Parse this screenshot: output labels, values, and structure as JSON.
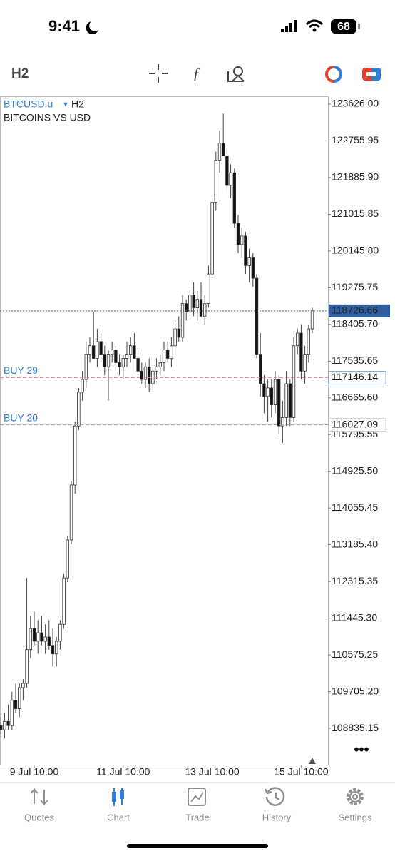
{
  "status_bar": {
    "time": "9:41",
    "battery": "68"
  },
  "toolbar": {
    "period": "H2"
  },
  "chart_header": {
    "symbol": "BTCUSD.u",
    "period": "H2",
    "description": "BITCOINS VS USD"
  },
  "tabs": [
    "Quotes",
    "Chart",
    "Trade",
    "History",
    "Settings"
  ],
  "chart_data": {
    "type": "candlestick",
    "categories": [
      null,
      null,
      null,
      null,
      null,
      null,
      null,
      null,
      null,
      "9 Jul 10:00",
      null,
      null,
      null,
      null,
      null,
      null,
      null,
      null,
      null,
      null,
      null,
      null,
      null,
      null,
      null,
      null,
      null,
      null,
      null,
      null,
      null,
      null,
      null,
      "11 Jul 10:00",
      null,
      null,
      null,
      null,
      null,
      null,
      null,
      null,
      null,
      null,
      null,
      null,
      null,
      null,
      null,
      null,
      null,
      null,
      null,
      null,
      null,
      null,
      null,
      "13 Jul 10:00",
      null,
      null,
      null,
      null,
      null,
      null,
      null,
      null,
      null,
      null,
      null,
      null,
      null,
      null,
      null,
      null,
      null,
      null,
      null,
      null,
      null,
      null,
      null,
      "15 Jul 10:00",
      null,
      null,
      null
    ],
    "open": [
      108900,
      108800,
      109000,
      108900,
      109500,
      109300,
      109800,
      109900,
      110700,
      111200,
      110900,
      111100,
      110900,
      111000,
      110800,
      110600,
      110900,
      111300,
      112400,
      113300,
      114600,
      116000,
      116800,
      117100,
      117700,
      117900,
      117600,
      118000,
      117700,
      117400,
      117700,
      117800,
      117500,
      117400,
      117600,
      117700,
      117900,
      117600,
      117300,
      117100,
      117400,
      117000,
      117300,
      117400,
      117500,
      117800,
      117600,
      117900,
      118300,
      118100,
      118900,
      118700,
      119100,
      118800,
      119000,
      118600,
      118900,
      119600,
      121300,
      122300,
      122700,
      122400,
      121700,
      122000,
      120800,
      120300,
      120500,
      119800,
      120000,
      119500,
      117700,
      117000,
      116700,
      116900,
      116500,
      117100,
      116000,
      116200,
      117000,
      116200,
      117900,
      118200,
      117300,
      117700,
      118300
    ],
    "high": [
      109100,
      109200,
      109400,
      109700,
      109900,
      109900,
      110000,
      112400,
      111500,
      111600,
      111400,
      111500,
      111300,
      111400,
      111200,
      111000,
      111400,
      112500,
      113400,
      114700,
      116100,
      116900,
      117300,
      118000,
      118100,
      118700,
      118300,
      118200,
      117900,
      117800,
      118000,
      117900,
      117700,
      117700,
      118000,
      118100,
      118200,
      117800,
      117500,
      117500,
      117600,
      117400,
      117600,
      117700,
      118000,
      118000,
      118100,
      118500,
      118600,
      119100,
      119000,
      119300,
      119400,
      119200,
      119400,
      119100,
      119800,
      121400,
      122500,
      123000,
      123400,
      122600,
      122200,
      122100,
      121000,
      120700,
      120600,
      120200,
      120100,
      119600,
      118200,
      117200,
      117100,
      117100,
      117300,
      117200,
      116600,
      117300,
      117100,
      118100,
      118300,
      118400,
      117900,
      118400,
      118800
    ],
    "low": [
      108700,
      108600,
      108800,
      108800,
      109200,
      109100,
      109500,
      109800,
      110500,
      110800,
      110600,
      110800,
      110600,
      110700,
      110300,
      110300,
      110700,
      111200,
      112300,
      113200,
      114400,
      115900,
      116600,
      116900,
      117500,
      117700,
      117400,
      117500,
      117200,
      116600,
      117500,
      117300,
      117200,
      117100,
      117400,
      117500,
      117700,
      117200,
      117000,
      116900,
      116800,
      116800,
      117100,
      117200,
      117300,
      117500,
      117400,
      117700,
      118000,
      118000,
      118500,
      118600,
      118600,
      118500,
      118700,
      118400,
      118800,
      119500,
      121100,
      122000,
      122500,
      121500,
      121400,
      120700,
      120100,
      120000,
      119600,
      119400,
      119300,
      117600,
      116700,
      116300,
      116100,
      116200,
      116300,
      115800,
      115600,
      116000,
      116000,
      116100,
      117700,
      117100,
      117000,
      117500,
      118200
    ],
    "close": [
      108800,
      109000,
      108900,
      109500,
      109300,
      109800,
      109900,
      110700,
      111200,
      110900,
      111100,
      110900,
      111000,
      110800,
      110600,
      110900,
      111300,
      112400,
      113300,
      114600,
      116000,
      116800,
      117100,
      117700,
      117900,
      117600,
      118000,
      117700,
      117400,
      117700,
      117800,
      117500,
      117400,
      117600,
      117700,
      117900,
      117600,
      117300,
      117100,
      117400,
      117000,
      117300,
      117400,
      117500,
      117800,
      117600,
      117900,
      118300,
      118100,
      118900,
      118700,
      119100,
      118800,
      119000,
      118600,
      118900,
      119600,
      121300,
      122300,
      122700,
      122400,
      121700,
      122000,
      120800,
      120300,
      120500,
      119800,
      120000,
      119500,
      117700,
      117000,
      116700,
      116900,
      116500,
      117100,
      116000,
      116200,
      117000,
      116200,
      117900,
      118200,
      117300,
      117700,
      118300,
      118726.66
    ],
    "up_color": "#ffffff",
    "down_color": "#111111",
    "ylim": [
      107974,
      123795
    ],
    "yticks": [
      {
        "value": 123626,
        "label": "123626.00"
      },
      122755.95,
      {
        "value": 121885.9,
        "label": "121885.90"
      },
      121015.85,
      {
        "value": 120145.8,
        "label": "120145.80"
      },
      119275.75,
      {
        "value": 118405.7,
        "label": "118405.70"
      },
      117535.65,
      {
        "value": 116665.6,
        "label": "116665.60"
      },
      115795.55,
      {
        "value": 114925.5,
        "label": "114925.50"
      },
      114055.45,
      {
        "value": 113185.4,
        "label": "113185.40"
      },
      112315.35,
      {
        "value": 111445.3,
        "label": "111445.30"
      },
      110575.25,
      {
        "value": 109705.2,
        "label": "109705.20"
      },
      108835.15
    ],
    "price_lines": [
      {
        "value": 118726.66,
        "color": "#2f5f9e"
      },
      {
        "value": 117146.14,
        "text": "BUY 29",
        "color": "#e0828a"
      },
      {
        "value": 116027.09,
        "text": "BUY 20",
        "color": "#999999"
      }
    ]
  }
}
